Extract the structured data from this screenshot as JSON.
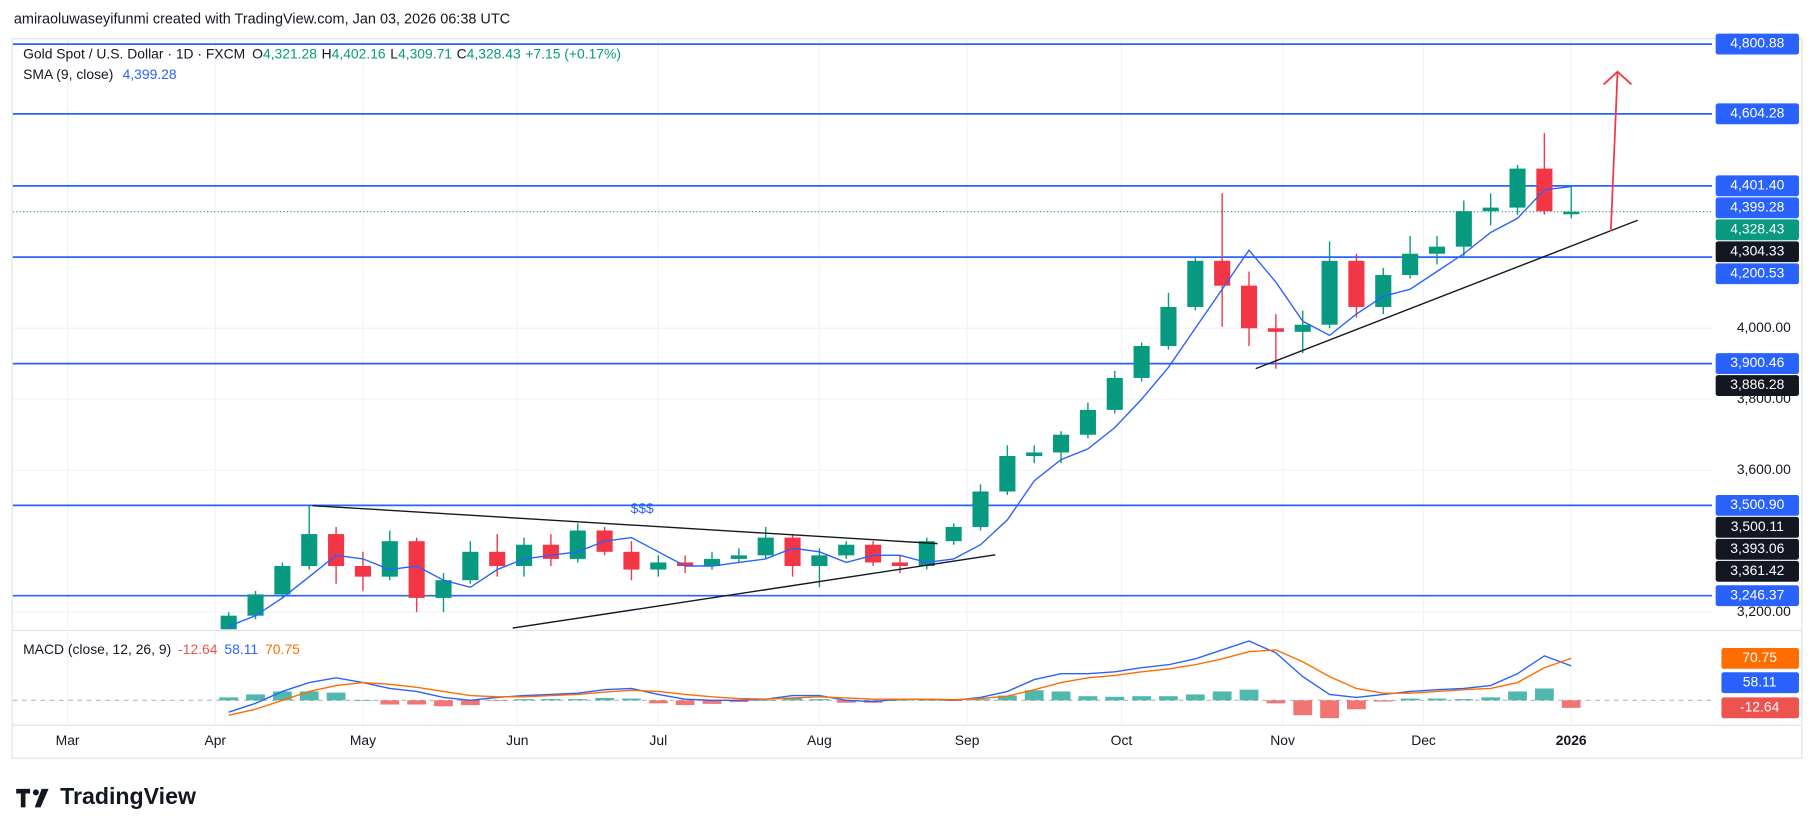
{
  "header": {
    "watermark": "amiraoluwaseyifunmi created with TradingView.com, Jan 03, 2026 06:38 UTC",
    "logo": "TradingView"
  },
  "chart_data": [
    {
      "type": "candlestick",
      "title": "Gold Spot / U.S. Dollar · 1D · FXCM",
      "ohlc_legend": [
        {
          "key": "O",
          "value": "4,321.28"
        },
        {
          "key": "H",
          "value": "4,402.16"
        },
        {
          "key": "L",
          "value": "4,309.71"
        },
        {
          "key": "C",
          "value": "4,328.43"
        }
      ],
      "change": "+7.15 (+0.17%)",
      "x": [
        32,
        36,
        40,
        44,
        48,
        52,
        56,
        60,
        64,
        68,
        72,
        76,
        80,
        84,
        88,
        92,
        96,
        100,
        104,
        108,
        112,
        116,
        120,
        124,
        128,
        132,
        136,
        140,
        144,
        148,
        152,
        156,
        160,
        164,
        168,
        172,
        176,
        180,
        184,
        188,
        192,
        196,
        200,
        204,
        208,
        212,
        216,
        220,
        224,
        228,
        232
      ],
      "open": [
        3150,
        3190,
        3250,
        3330,
        3420,
        3330,
        3300,
        3400,
        3240,
        3290,
        3370,
        3330,
        3390,
        3350,
        3430,
        3370,
        3320,
        3340,
        3330,
        3350,
        3360,
        3410,
        3330,
        3360,
        3390,
        3340,
        3330,
        3400,
        3440,
        3540,
        3640,
        3650,
        3700,
        3770,
        3860,
        3950,
        4060,
        4190,
        4120,
        4000,
        3990,
        4010,
        4190,
        4060,
        4150,
        4210,
        4230,
        4330,
        4340,
        4450,
        4321.28
      ],
      "high": [
        3200,
        3260,
        3340,
        3500,
        3440,
        3370,
        3430,
        3410,
        3310,
        3400,
        3420,
        3410,
        3420,
        3450,
        3440,
        3400,
        3360,
        3360,
        3370,
        3380,
        3440,
        3420,
        3380,
        3400,
        3400,
        3360,
        3410,
        3450,
        3560,
        3670,
        3670,
        3710,
        3790,
        3880,
        3960,
        4100,
        4200,
        4381,
        4160,
        4040,
        4050,
        4245,
        4210,
        4170,
        4260,
        4260,
        4360,
        4380,
        4460,
        4550,
        4402.16
      ],
      "low": [
        3140,
        3180,
        3240,
        3320,
        3280,
        3260,
        3290,
        3200,
        3200,
        3280,
        3300,
        3300,
        3330,
        3340,
        3360,
        3290,
        3300,
        3310,
        3320,
        3340,
        3350,
        3300,
        3270,
        3350,
        3330,
        3310,
        3320,
        3390,
        3430,
        3530,
        3620,
        3620,
        3690,
        3760,
        3850,
        3940,
        4050,
        4004,
        3950,
        3886,
        3930,
        4000,
        4030,
        4040,
        4140,
        4180,
        4200,
        4290,
        4320,
        4320,
        4309.71
      ],
      "close": [
        3190,
        3250,
        3330,
        3420,
        3330,
        3300,
        3400,
        3240,
        3290,
        3370,
        3330,
        3390,
        3350,
        3430,
        3370,
        3320,
        3340,
        3330,
        3350,
        3360,
        3410,
        3330,
        3360,
        3390,
        3340,
        3330,
        3400,
        3440,
        3540,
        3640,
        3650,
        3700,
        3770,
        3860,
        3950,
        4060,
        4190,
        4120,
        4000,
        3990,
        4010,
        4190,
        4060,
        4150,
        4210,
        4230,
        4330,
        4340,
        4450,
        4330,
        4328.43
      ],
      "up_color": "#089981",
      "down_color": "#f23645",
      "sma": {
        "title": "SMA (9, close)",
        "color": "#2962ff",
        "values": [
          3160,
          3190,
          3240,
          3300,
          3360,
          3350,
          3320,
          3330,
          3290,
          3270,
          3320,
          3350,
          3360,
          3370,
          3400,
          3410,
          3370,
          3330,
          3330,
          3340,
          3350,
          3380,
          3370,
          3340,
          3360,
          3360,
          3340,
          3350,
          3390,
          3460,
          3570,
          3630,
          3660,
          3720,
          3800,
          3890,
          4000,
          4110,
          4220,
          4130,
          4020,
          3980,
          4040,
          4090,
          4110,
          4160,
          4210,
          4270,
          4310,
          4390,
          4399.28
        ]
      },
      "xlim": [
        0,
        253
      ],
      "ylim": [
        3155,
        4811
      ],
      "xticks": [
        {
          "value": 8,
          "label": "Mar"
        },
        {
          "value": 30,
          "label": "Apr"
        },
        {
          "value": 52,
          "label": "May"
        },
        {
          "value": 75,
          "label": "Jun"
        },
        {
          "value": 96,
          "label": "Jul"
        },
        {
          "value": 120,
          "label": "Aug"
        },
        {
          "value": 142,
          "label": "Sep"
        },
        {
          "value": 165,
          "label": "Oct"
        },
        {
          "value": 189,
          "label": "Nov"
        },
        {
          "value": 210,
          "label": "Dec"
        },
        {
          "value": 232,
          "label": "2026"
        }
      ],
      "yticks": [
        {
          "value": 3200,
          "label": "3,200.00"
        },
        {
          "value": 3600,
          "label": "3,600.00"
        },
        {
          "value": 3800,
          "label": "3,800.00"
        },
        {
          "value": 4000,
          "label": "4,000.00"
        }
      ],
      "grid": true,
      "level_color": "#2962ff",
      "price_labels": [
        {
          "value": 4800.88,
          "label": "4,800.88",
          "color": "#2962ff",
          "line": true
        },
        {
          "value": 4604.28,
          "label": "4,604.28",
          "color": "#2962ff",
          "line": true
        },
        {
          "value": 4401.4,
          "label": "4,401.40",
          "color": "#2962ff",
          "line": true
        },
        {
          "value": 4399.28,
          "label": "4,399.28",
          "color": "#2962ff",
          "line": false
        },
        {
          "value": 4328.43,
          "label": "4,328.43",
          "color": "#089981",
          "line": false
        },
        {
          "value": 4304.33,
          "label": "4,304.33",
          "color": "#131722",
          "line": false
        },
        {
          "value": 4200.53,
          "label": "4,200.53",
          "color": "#2962ff",
          "line": true
        },
        {
          "value": 3900.46,
          "label": "3,900.46",
          "color": "#2962ff",
          "line": true
        },
        {
          "value": 3886.28,
          "label": "3,886.28",
          "color": "#131722",
          "line": false
        },
        {
          "value": 3500.9,
          "label": "3,500.90",
          "color": "#2962ff",
          "line": true
        },
        {
          "value": 3500.11,
          "label": "3,500.11",
          "color": "#131722",
          "line": false
        },
        {
          "value": 3393.06,
          "label": "3,393.06",
          "color": "#131722",
          "line": false
        },
        {
          "value": 3361.42,
          "label": "3,361.42",
          "color": "#131722",
          "line": false
        },
        {
          "value": 3246.37,
          "label": "3,246.37",
          "color": "#2962ff",
          "line": true
        }
      ],
      "last_price": 4328.43,
      "last_price_color": "#089981",
      "trendlines": [
        {
          "x": [
            44.5,
            137.6
          ],
          "y": [
            3500.11,
            3393.06
          ]
        },
        {
          "x": [
            74.3,
            146.2
          ],
          "y": [
            3155,
            3361.42
          ]
        },
        {
          "x": [
            185,
            241.9
          ],
          "y": [
            3886.28,
            4304.33
          ]
        }
      ],
      "arrow": {
        "x": [
          237.9,
          238.9
        ],
        "y": [
          4273,
          4723
        ],
        "color": "#f23645"
      },
      "annotations": [
        {
          "text": "$$$",
          "x": 93.6,
          "y": 3490,
          "color": "#2962ff"
        }
      ]
    },
    {
      "type": "macd",
      "title": "MACD (close, 12, 26, 9)",
      "ylim": [
        -42,
        112
      ],
      "histogram": {
        "up_color": "#26a69a",
        "down_color": "#ef5350",
        "values": [
          5,
          10,
          15,
          15,
          13,
          0,
          -7,
          -7,
          -10,
          -8,
          -1,
          2,
          2,
          2,
          4,
          3,
          -5,
          -8,
          -6,
          -3,
          0,
          4,
          2,
          -4,
          -4,
          0,
          0,
          -1,
          2,
          8,
          17,
          15,
          7,
          6,
          7,
          7,
          10,
          15,
          18,
          -5,
          -25,
          -30,
          -15,
          -2,
          3,
          3,
          2,
          5,
          15,
          20,
          -12.64
        ]
      },
      "macd": {
        "color": "#2962ff",
        "values": [
          -20,
          -5,
          15,
          30,
          38,
          30,
          20,
          15,
          5,
          0,
          5,
          8,
          10,
          12,
          18,
          20,
          10,
          2,
          0,
          0,
          2,
          8,
          8,
          0,
          -2,
          2,
          2,
          0,
          5,
          15,
          35,
          45,
          45,
          48,
          55,
          60,
          70,
          85,
          100,
          80,
          40,
          10,
          5,
          10,
          15,
          18,
          20,
          25,
          45,
          75,
          58.11
        ]
      },
      "signal": {
        "color": "#ff6d00",
        "values": [
          -25,
          -15,
          0,
          15,
          25,
          30,
          27,
          22,
          15,
          8,
          6,
          6,
          8,
          10,
          14,
          17,
          15,
          10,
          6,
          3,
          2,
          4,
          6,
          4,
          2,
          2,
          2,
          1,
          3,
          7,
          18,
          30,
          38,
          42,
          48,
          53,
          60,
          70,
          82,
          85,
          65,
          40,
          20,
          12,
          12,
          15,
          18,
          20,
          30,
          55,
          70.75
        ]
      }
    }
  ]
}
